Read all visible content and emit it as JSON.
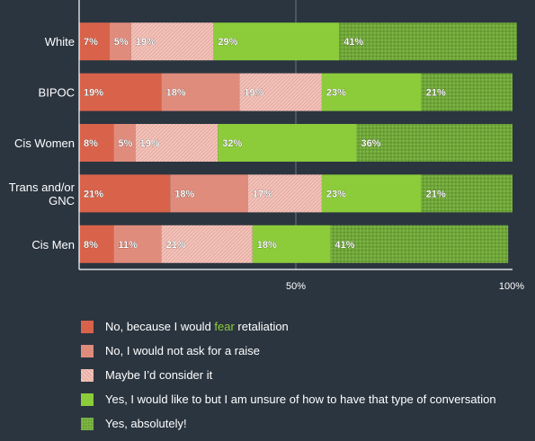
{
  "colors": {
    "background": "#2b3540",
    "axis": "#ffffff",
    "gridline": "#6b7680",
    "series": [
      "#d9634a",
      "#e08c7c",
      "#eab0a6",
      "#8ccc3a",
      "#6fa53a"
    ]
  },
  "legend": {
    "items": [
      {
        "series_index": 0,
        "parts": [
          "No, because I would ",
          "fear",
          " retaliation"
        ]
      },
      {
        "series_index": 1,
        "parts": [
          "No, I would not ask for a raise",
          "",
          ""
        ]
      },
      {
        "series_index": 2,
        "parts": [
          "Maybe I’d consider it",
          "",
          ""
        ]
      },
      {
        "series_index": 3,
        "parts": [
          "Yes, I would like to but I am unsure of how to have that type of conversation",
          "",
          ""
        ]
      },
      {
        "series_index": 4,
        "parts": [
          "Yes, absolutely!",
          "",
          ""
        ]
      }
    ]
  },
  "chart_data": {
    "type": "bar",
    "orientation": "horizontal",
    "stacked": true,
    "categories": [
      "White",
      "BIPOC",
      "Cis Women",
      "Trans and/or GNC",
      "Cis Men"
    ],
    "category_lines": [
      [
        "White"
      ],
      [
        "BIPOC"
      ],
      [
        "Cis Women"
      ],
      [
        "Trans and/or",
        "GNC"
      ],
      [
        "Cis Men"
      ]
    ],
    "series": [
      {
        "name": "No, because I would fear retaliation",
        "values": [
          7,
          19,
          8,
          21,
          8
        ],
        "pattern": "solid"
      },
      {
        "name": "No, I would not ask for a raise",
        "values": [
          5,
          18,
          5,
          18,
          11
        ],
        "pattern": "solid"
      },
      {
        "name": "Maybe I’d consider it",
        "values": [
          19,
          19,
          19,
          17,
          21
        ],
        "pattern": "hatch"
      },
      {
        "name": "Yes, I would like to but I am unsure of how to have that type of conversation",
        "values": [
          29,
          23,
          32,
          23,
          18
        ],
        "pattern": "solid"
      },
      {
        "name": "Yes, absolutely!",
        "values": [
          41,
          21,
          36,
          21,
          41
        ],
        "pattern": "dots"
      }
    ],
    "xlim": [
      0,
      100
    ],
    "xticks": [
      {
        "value": 50,
        "label": "50%"
      },
      {
        "value": 100,
        "label": "100%"
      }
    ],
    "value_suffix": "%",
    "gridlines": [
      50
    ],
    "legend_position": "bottom"
  }
}
